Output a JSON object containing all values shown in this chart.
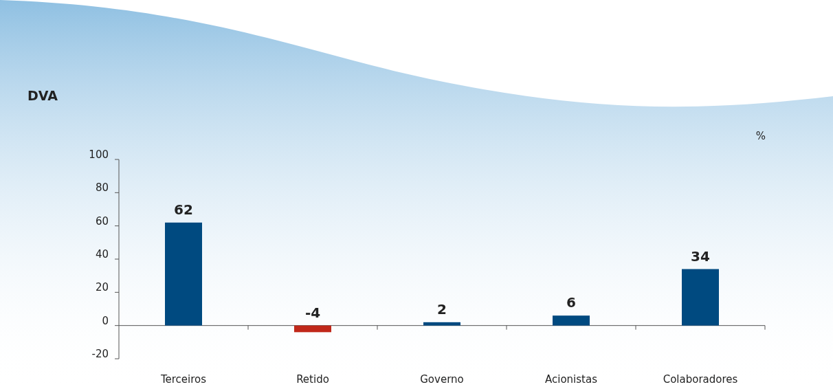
{
  "chart_data": {
    "type": "bar",
    "title": "DVA",
    "ylabel": "%",
    "categories": [
      "Terceiros",
      "Retido",
      "Governo",
      "Acionistas",
      "Colaboradores"
    ],
    "values": [
      62,
      -4,
      2,
      6,
      34
    ],
    "colors": [
      "#004a80",
      "#c0281a",
      "#004a80",
      "#004a80",
      "#004a80"
    ],
    "ylim": [
      -20,
      100
    ],
    "yticks": [
      -20,
      0,
      20,
      40,
      60,
      80,
      100
    ],
    "data_labels": true
  }
}
